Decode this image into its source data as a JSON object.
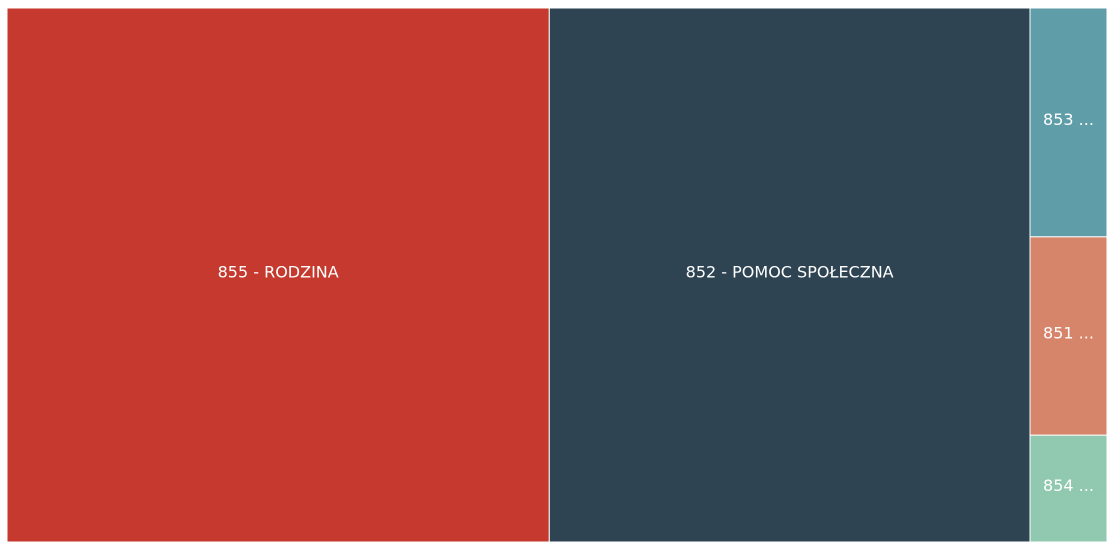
{
  "chart_data": {
    "type": "treemap",
    "categories": [
      "855 - RODZINA",
      "852 - POMOC SPOŁECZNA",
      "853 ...",
      "851 ...",
      "854 ..."
    ],
    "values": [
      49.3,
      43.7,
      3.0,
      2.6,
      1.4
    ],
    "colors": [
      "#c5392f",
      "#2e4453",
      "#5f9ea8",
      "#d6846a",
      "#90c9b0"
    ]
  }
}
